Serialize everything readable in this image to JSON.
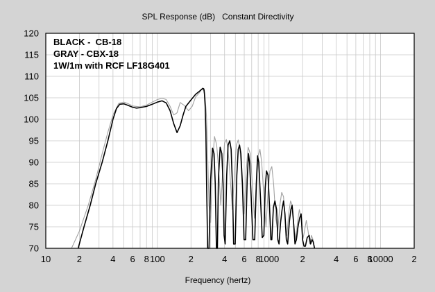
{
  "chart_data": {
    "type": "line",
    "title": "SPL Response (dB)   Constant Directivity",
    "xlabel": "Frequency (hertz)",
    "ylabel": "",
    "x_scale": "log",
    "xlim": [
      10,
      20000
    ],
    "ylim": [
      70,
      120
    ],
    "grid": true,
    "y_ticks": [
      70,
      75,
      80,
      85,
      90,
      95,
      100,
      105,
      110,
      115,
      120
    ],
    "x_ticks": [
      {
        "value": 10,
        "label": "10"
      },
      {
        "value": 20,
        "label": "2"
      },
      {
        "value": 40,
        "label": "4"
      },
      {
        "value": 60,
        "label": "6"
      },
      {
        "value": 80,
        "label": "8"
      },
      {
        "value": 100,
        "label": "100"
      },
      {
        "value": 200,
        "label": "2"
      },
      {
        "value": 400,
        "label": "4"
      },
      {
        "value": 600,
        "label": "6"
      },
      {
        "value": 800,
        "label": "8"
      },
      {
        "value": 1000,
        "label": "1000"
      },
      {
        "value": 2000,
        "label": "2"
      },
      {
        "value": 4000,
        "label": "4"
      },
      {
        "value": 6000,
        "label": "6"
      },
      {
        "value": 8000,
        "label": "8"
      },
      {
        "value": 10000,
        "label": "10000"
      },
      {
        "value": 20000,
        "label": "2"
      }
    ],
    "annotations": [
      "BLACK -  CB-18",
      "GRAY - CBX-18",
      "1W/1m with RCF LF18G401"
    ],
    "series": [
      {
        "color": "#000000",
        "x": [
          19.5,
          22,
          25,
          28,
          32,
          36,
          40,
          43,
          46,
          50,
          55,
          60,
          65,
          70,
          80,
          90,
          100,
          110,
          120,
          130,
          140,
          150,
          160,
          170,
          180,
          200,
          220,
          240,
          255,
          260,
          262,
          264,
          268,
          272,
          276,
          282,
          290,
          300,
          312,
          322,
          330,
          338,
          345,
          352,
          365,
          378,
          388,
          396,
          405,
          418,
          430,
          445,
          458,
          470,
          482,
          498,
          515,
          530,
          545,
          560,
          578,
          598,
          618,
          638,
          655,
          670,
          692,
          718,
          745,
          770,
          790,
          810,
          838,
          870,
          900,
          925,
          950,
          980,
          1010,
          1040,
          1060,
          1095,
          1130,
          1170,
          1200,
          1230,
          1270,
          1310,
          1350,
          1390,
          1430,
          1470,
          1520,
          1570,
          1610,
          1660,
          1710,
          1760,
          1820,
          1880,
          1940,
          2000,
          2060,
          2120,
          2200,
          2290,
          2360,
          2430,
          2490,
          2560
        ],
        "y": [
          70,
          75,
          80,
          85,
          90,
          95,
          100,
          102.5,
          103.5,
          103.6,
          103.2,
          102.8,
          102.6,
          102.7,
          103.0,
          103.5,
          104.0,
          104.3,
          103.8,
          102.0,
          99.0,
          96.9,
          98.5,
          101.0,
          103.0,
          104.5,
          105.8,
          106.6,
          107.2,
          107.1,
          106.8,
          106.0,
          103.0,
          97.0,
          85.0,
          70.0,
          70.0,
          86.0,
          93.3,
          92.0,
          85.0,
          70.0,
          70.0,
          86.0,
          93.5,
          92.0,
          85.0,
          73.0,
          71.0,
          87.0,
          94.0,
          95.0,
          93.0,
          85.0,
          71.0,
          71.0,
          87.0,
          93.0,
          94.0,
          92.0,
          85.0,
          72.0,
          72.0,
          86.0,
          92.0,
          90.0,
          82.0,
          72.0,
          72.0,
          85.0,
          91.5,
          90.0,
          82.0,
          72.5,
          73.0,
          84.0,
          88.0,
          87.0,
          80.0,
          72.0,
          72.0,
          79.5,
          81.0,
          79.0,
          72.0,
          71.0,
          76.0,
          79.0,
          81.0,
          78.0,
          72.0,
          71.0,
          76.0,
          79.0,
          80.0,
          76.0,
          71.0,
          72.0,
          75.0,
          77.0,
          78.0,
          72.0,
          70.5,
          70.5,
          72.5,
          73.0,
          71.0,
          72.0,
          71.5,
          70.0
        ]
      },
      {
        "color": "#a0a0a0",
        "x": [
          17,
          20,
          24,
          28,
          32,
          36,
          40,
          45,
          50,
          55,
          60,
          70,
          80,
          90,
          100,
          110,
          120,
          130,
          140,
          150,
          160,
          175,
          190,
          205,
          220,
          235,
          250,
          260,
          268,
          275,
          282,
          290,
          300,
          312,
          325,
          340,
          355,
          370,
          385,
          400,
          415,
          430,
          450,
          470,
          490,
          510,
          530,
          550,
          575,
          600,
          625,
          650,
          680,
          710,
          740,
          770,
          800,
          830,
          860,
          900,
          940,
          980,
          1020,
          1060,
          1100,
          1150,
          1200,
          1250,
          1300,
          1350,
          1400,
          1450,
          1500,
          1560,
          1620,
          1680,
          1740,
          1800,
          1870,
          1940,
          2010,
          2080,
          2160,
          2240,
          2320,
          2400,
          2480,
          2560
        ],
        "y": [
          70,
          74,
          80,
          86,
          92,
          97,
          101,
          103.7,
          104.0,
          103.6,
          103.1,
          102.9,
          103.3,
          104.0,
          104.6,
          104.9,
          104.6,
          103.0,
          101.0,
          101.5,
          103.9,
          103.2,
          102.0,
          103.0,
          105.2,
          106.0,
          107.0,
          106.7,
          105.0,
          101.0,
          92.0,
          80.0,
          76.0,
          90.0,
          96.0,
          94.0,
          88.0,
          80.0,
          88.0,
          94.5,
          95.3,
          93.0,
          86.0,
          79.0,
          87.0,
          94.0,
          95.2,
          93.0,
          85.0,
          78.0,
          88.0,
          93.5,
          92.0,
          85.0,
          77.0,
          85.0,
          91.5,
          93.0,
          90.0,
          82.0,
          75.0,
          83.0,
          88.0,
          89.0,
          85.0,
          77.0,
          74.0,
          80.0,
          83.0,
          82.0,
          76.0,
          73.0,
          78.0,
          81.0,
          80.0,
          75.0,
          72.0,
          76.0,
          79.0,
          77.0,
          72.0,
          74.0,
          76.5,
          74.0,
          71.0,
          73.0,
          72.0,
          70.0
        ]
      }
    ]
  }
}
